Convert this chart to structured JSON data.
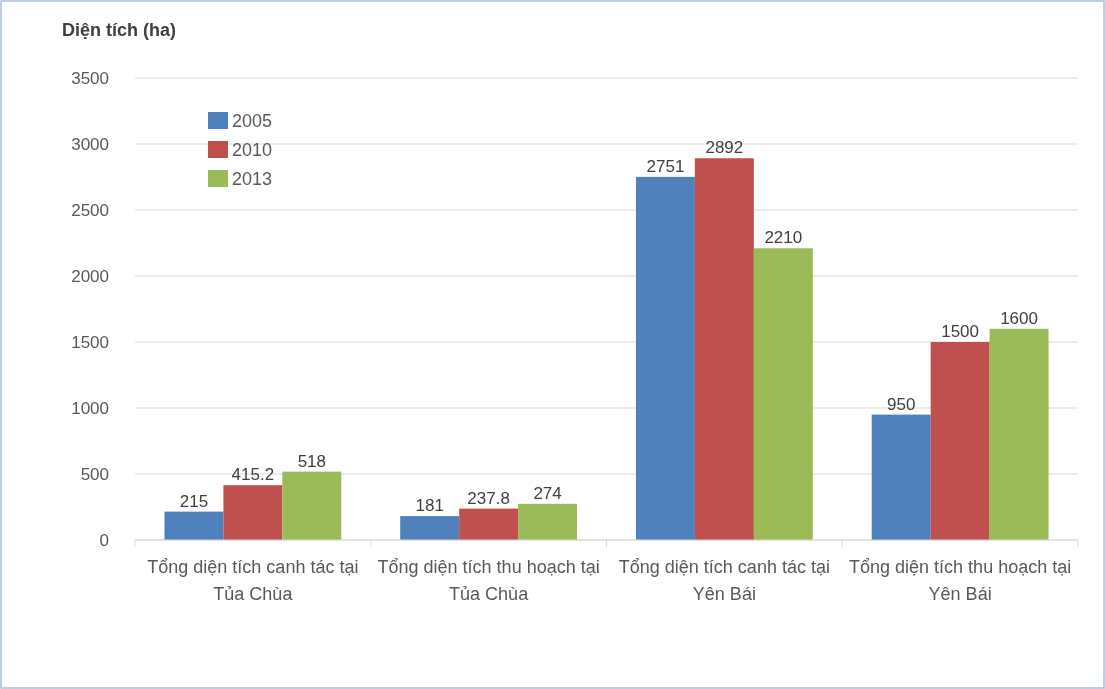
{
  "chart_data": {
    "type": "bar",
    "ylabel": "Diện tích (ha)",
    "categories": [
      "Tổng diện tích canh tác tại Tủa Chùa",
      "Tổng diện tích thu hoạch tại Tủa Chùa",
      "Tổng diện tích canh tác tại Yên Bái",
      "Tổng diện tích thu hoạch tại Yên Bái"
    ],
    "series": [
      {
        "name": "2005",
        "color": "#4f81bd",
        "values": [
          215,
          181,
          2751,
          950
        ]
      },
      {
        "name": "2010",
        "color": "#c0504d",
        "values": [
          415.2,
          237.8,
          2892,
          1500
        ]
      },
      {
        "name": "2013",
        "color": "#9bbb59",
        "values": [
          518,
          274,
          2210,
          1600
        ]
      }
    ],
    "ylim": [
      0,
      3500
    ],
    "yticks": [
      0,
      500,
      1000,
      1500,
      2000,
      2500,
      3000,
      3500
    ],
    "grid": "y",
    "legend": "top left",
    "data_labels": true
  }
}
